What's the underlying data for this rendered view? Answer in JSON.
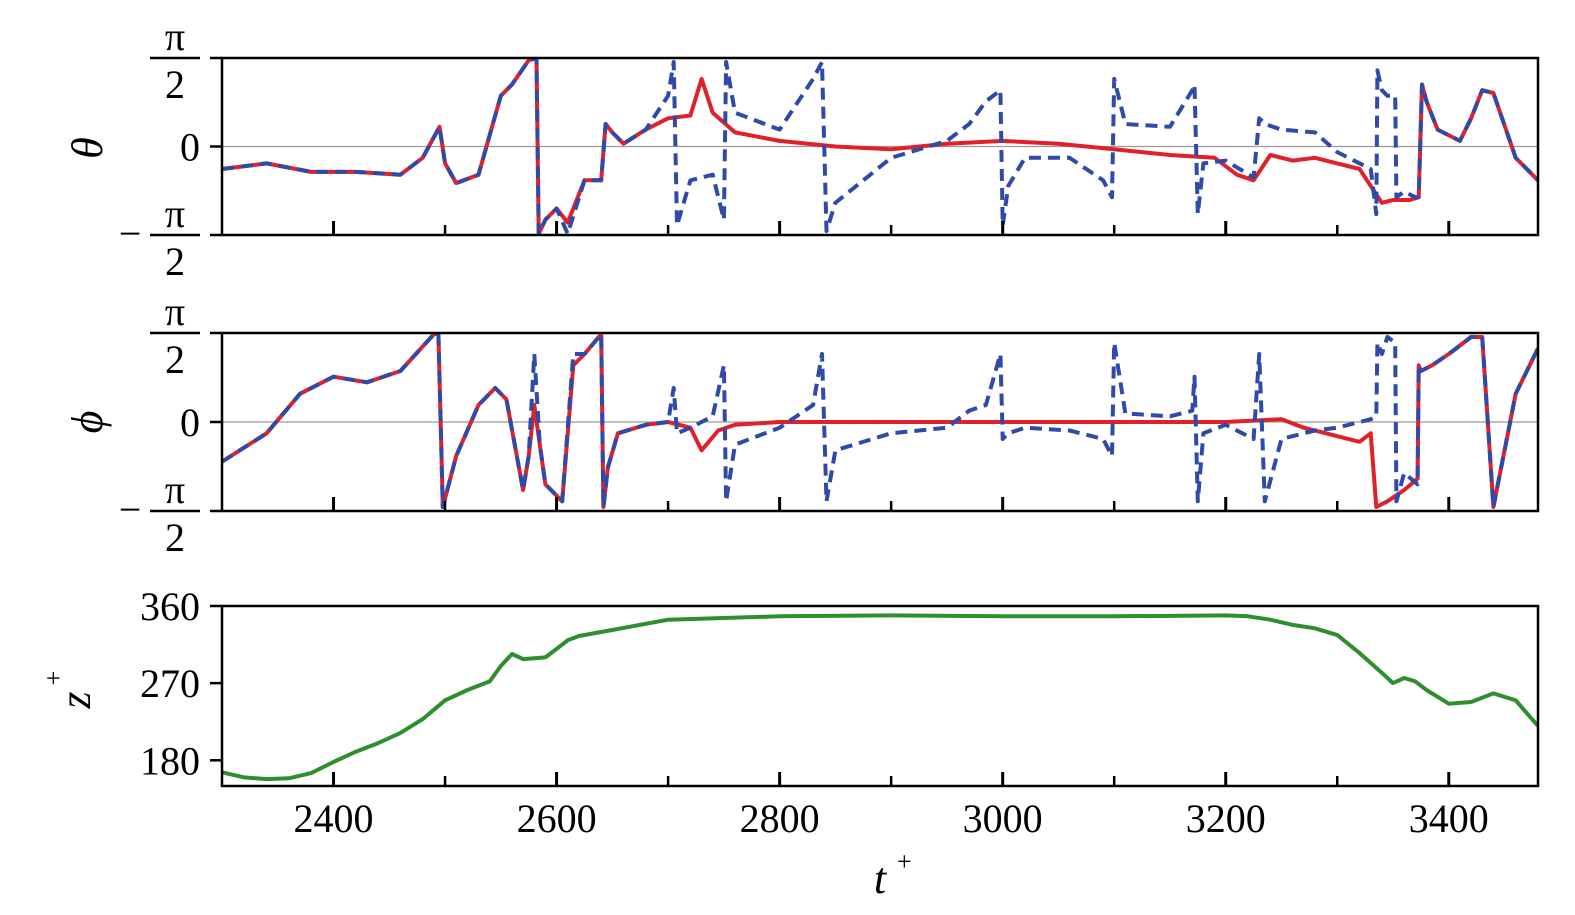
{
  "colors": {
    "red": "#e0202a",
    "blue": "#2f4aa8",
    "green": "#2f8f2f",
    "zero_line": "#9a9a9a"
  },
  "chart_data": [
    {
      "type": "line",
      "ylabel": "θ",
      "xlim": [
        2300,
        3480
      ],
      "ylim": [
        -1.5708,
        1.5708
      ],
      "y_ticks": [
        {
          "value": -1.5708,
          "sign": "−",
          "num": "π",
          "den": "2"
        },
        {
          "value": 0,
          "text": "0"
        },
        {
          "value": 1.5708,
          "sign": "",
          "num": "π",
          "den": "2"
        }
      ],
      "zero_line": true,
      "series": [
        {
          "color_key": "red",
          "style": "solid",
          "x": [
            2300,
            2340,
            2380,
            2420,
            2460,
            2480,
            2495,
            2500,
            2510,
            2530,
            2550,
            2560,
            2575,
            2582,
            2584,
            2590,
            2600,
            2610,
            2625,
            2640,
            2644,
            2650,
            2660,
            2680,
            2700,
            2720,
            2730,
            2740,
            2760,
            2800,
            2850,
            2900,
            2950,
            3000,
            3050,
            3100,
            3150,
            3190,
            3200,
            3210,
            3225,
            3240,
            3260,
            3280,
            3300,
            3320,
            3330,
            3340,
            3350,
            3365,
            3373,
            3376,
            3380,
            3390,
            3410,
            3420,
            3430,
            3440,
            3460,
            3480
          ],
          "y": [
            -0.4,
            -0.3,
            -0.45,
            -0.45,
            -0.5,
            -0.2,
            0.35,
            -0.3,
            -0.65,
            -0.5,
            0.9,
            1.1,
            1.53,
            1.57,
            -1.55,
            -1.3,
            -1.1,
            -1.35,
            -0.6,
            -0.6,
            0.4,
            0.25,
            0.05,
            0.3,
            0.5,
            0.55,
            1.2,
            0.6,
            0.25,
            0.1,
            0,
            -0.05,
            0.05,
            0.1,
            0.05,
            -0.05,
            -0.15,
            -0.2,
            -0.35,
            -0.5,
            -0.6,
            -0.15,
            -0.25,
            -0.2,
            -0.3,
            -0.4,
            -0.7,
            -1.0,
            -0.95,
            -0.95,
            -0.9,
            1.1,
            0.8,
            0.3,
            0.1,
            0.5,
            1.0,
            0.95,
            -0.2,
            -0.6
          ]
        },
        {
          "color_key": "blue",
          "style": "dashed",
          "x": [
            2300,
            2340,
            2380,
            2420,
            2460,
            2480,
            2495,
            2500,
            2510,
            2530,
            2550,
            2560,
            2575,
            2582,
            2584,
            2590,
            2600,
            2610,
            2625,
            2640,
            2644,
            2650,
            2660,
            2680,
            2700,
            2705,
            2708,
            2720,
            2740,
            2750,
            2752,
            2760,
            2800,
            2830,
            2838,
            2842,
            2850,
            2900,
            2950,
            2970,
            2985,
            2998,
            3000,
            3005,
            3020,
            3060,
            3090,
            3098,
            3100,
            3110,
            3150,
            3170,
            3172,
            3175,
            3180,
            3200,
            3225,
            3230,
            3235,
            3250,
            3280,
            3300,
            3330,
            3335,
            3336,
            3340,
            3345,
            3352,
            3353,
            3360,
            3370,
            3373,
            3376,
            3380,
            3390,
            3410,
            3420,
            3430,
            3440,
            3460,
            3480
          ],
          "y": [
            -0.4,
            -0.3,
            -0.45,
            -0.45,
            -0.5,
            -0.2,
            0.35,
            -0.3,
            -0.65,
            -0.5,
            0.9,
            1.1,
            1.53,
            1.57,
            -1.55,
            -1.3,
            -1.1,
            -1.55,
            -0.6,
            -0.6,
            0.4,
            0.25,
            0.05,
            0.3,
            0.9,
            1.5,
            -1.4,
            -0.6,
            -0.5,
            -1.3,
            1.5,
            0.6,
            0.3,
            1.2,
            1.5,
            -1.5,
            -1.0,
            -0.2,
            0.1,
            0.4,
            0.8,
            1.0,
            -1.4,
            -0.7,
            -0.2,
            -0.2,
            -0.6,
            -0.9,
            1.2,
            0.4,
            0.35,
            1.0,
            1.1,
            -1.2,
            -0.3,
            -0.25,
            -0.55,
            0.5,
            0.4,
            0.3,
            0.25,
            -0.1,
            -0.4,
            -1.2,
            1.35,
            1.0,
            0.9,
            0.9,
            -0.9,
            -0.8,
            -0.9,
            -0.9,
            1.1,
            0.8,
            0.3,
            0.1,
            0.5,
            1.0,
            0.95,
            -0.2,
            -0.6
          ]
        }
      ]
    },
    {
      "type": "line",
      "ylabel": "ϕ",
      "xlim": [
        2300,
        3480
      ],
      "ylim": [
        -1.5708,
        1.5708
      ],
      "y_ticks": [
        {
          "value": -1.5708,
          "sign": "−",
          "num": "π",
          "den": "2"
        },
        {
          "value": 0,
          "text": "0"
        },
        {
          "value": 1.5708,
          "sign": "",
          "num": "π",
          "den": "2"
        }
      ],
      "zero_line": true,
      "series": [
        {
          "color_key": "red",
          "style": "solid",
          "x": [
            2300,
            2340,
            2370,
            2400,
            2430,
            2460,
            2490,
            2494,
            2498,
            2510,
            2530,
            2545,
            2555,
            2570,
            2575,
            2580,
            2585,
            2590,
            2605,
            2615,
            2625,
            2640,
            2642,
            2646,
            2655,
            2680,
            2700,
            2720,
            2730,
            2745,
            2760,
            2800,
            2850,
            2900,
            2950,
            3000,
            3100,
            3200,
            3250,
            3270,
            3300,
            3320,
            3330,
            3335,
            3345,
            3360,
            3372,
            3373,
            3375,
            3385,
            3400,
            3420,
            3430,
            3440,
            3460,
            3480
          ],
          "y": [
            -0.7,
            -0.2,
            0.5,
            0.8,
            0.7,
            0.9,
            1.55,
            1.57,
            -1.5,
            -0.6,
            0.3,
            0.6,
            0.4,
            -1.2,
            -0.6,
            0.3,
            -0.4,
            -1.1,
            -1.4,
            1.0,
            1.2,
            1.55,
            -1.5,
            -0.8,
            -0.2,
            -0.05,
            0,
            -0.1,
            -0.5,
            -0.15,
            -0.05,
            0,
            0,
            0,
            0,
            0,
            0,
            0,
            0.05,
            -0.1,
            -0.25,
            -0.35,
            -0.2,
            -1.5,
            -1.4,
            -1.2,
            -1.0,
            1.0,
            0.9,
            1.0,
            1.2,
            1.5,
            1.5,
            -1.5,
            0.5,
            1.3
          ]
        },
        {
          "color_key": "blue",
          "style": "dashed",
          "x": [
            2300,
            2340,
            2370,
            2400,
            2430,
            2460,
            2490,
            2494,
            2498,
            2510,
            2530,
            2545,
            2555,
            2570,
            2575,
            2580,
            2585,
            2590,
            2605,
            2615,
            2625,
            2640,
            2642,
            2646,
            2655,
            2680,
            2700,
            2705,
            2708,
            2720,
            2740,
            2750,
            2752,
            2760,
            2800,
            2830,
            2838,
            2842,
            2850,
            2900,
            2950,
            2970,
            2985,
            2998,
            3000,
            3005,
            3020,
            3060,
            3090,
            3098,
            3100,
            3110,
            3150,
            3170,
            3172,
            3175,
            3180,
            3200,
            3225,
            3230,
            3235,
            3250,
            3280,
            3300,
            3330,
            3335,
            3336,
            3340,
            3345,
            3352,
            3353,
            3360,
            3372,
            3373,
            3375,
            3385,
            3400,
            3420,
            3430,
            3440,
            3460,
            3480
          ],
          "y": [
            -0.7,
            -0.2,
            0.5,
            0.8,
            0.7,
            0.9,
            1.55,
            1.57,
            -1.5,
            -0.6,
            0.3,
            0.6,
            0.4,
            -1.2,
            -0.6,
            1.2,
            -0.4,
            -1.1,
            -1.4,
            1.2,
            1.2,
            1.55,
            -1.5,
            -0.8,
            -0.2,
            -0.05,
            0,
            0.6,
            -0.2,
            -0.1,
            0.1,
            1.0,
            -1.4,
            -0.4,
            -0.1,
            0.3,
            1.2,
            -1.4,
            -0.5,
            -0.2,
            -0.1,
            0.2,
            0.3,
            1.2,
            -0.3,
            -0.2,
            -0.1,
            -0.15,
            -0.3,
            -0.6,
            1.4,
            0.15,
            0.1,
            0.2,
            0.8,
            -1.4,
            -0.2,
            -0.05,
            -0.3,
            1.2,
            -1.4,
            -0.3,
            -0.15,
            -0.1,
            0.05,
            0.1,
            1.4,
            1.2,
            1.5,
            1.4,
            -1.4,
            -0.9,
            -1.1,
            1.0,
            0.9,
            1.0,
            1.2,
            1.5,
            1.5,
            -1.5,
            0.5,
            1.3
          ]
        }
      ]
    },
    {
      "type": "line",
      "ylabel": "z",
      "ylabel_sup": "+",
      "xlabel": "t",
      "xlabel_sup": "+",
      "xlim": [
        2300,
        3480
      ],
      "ylim": [
        150,
        360
      ],
      "x_ticks": [
        2400,
        2600,
        2800,
        3000,
        3200,
        3400
      ],
      "x_minor_ticks": [
        2500,
        2700,
        2900,
        3100,
        3300
      ],
      "y_ticks": [
        {
          "value": 180,
          "text": "180"
        },
        {
          "value": 270,
          "text": "270"
        },
        {
          "value": 360,
          "text": "360"
        }
      ],
      "series": [
        {
          "color_key": "green",
          "style": "solid",
          "x": [
            2300,
            2320,
            2340,
            2360,
            2380,
            2400,
            2420,
            2440,
            2460,
            2480,
            2500,
            2520,
            2540,
            2550,
            2560,
            2570,
            2590,
            2600,
            2610,
            2620,
            2650,
            2700,
            2750,
            2800,
            2900,
            3000,
            3100,
            3200,
            3220,
            3240,
            3260,
            3280,
            3300,
            3320,
            3340,
            3350,
            3360,
            3370,
            3380,
            3400,
            3420,
            3440,
            3460,
            3480
          ],
          "y": [
            166,
            160,
            158,
            159,
            165,
            178,
            190,
            200,
            212,
            228,
            250,
            262,
            272,
            290,
            304,
            298,
            300,
            310,
            320,
            325,
            332,
            344,
            346,
            348,
            349,
            348,
            348,
            349,
            348,
            344,
            338,
            334,
            326,
            305,
            282,
            270,
            276,
            272,
            262,
            246,
            248,
            258,
            250,
            220
          ]
        }
      ]
    }
  ]
}
